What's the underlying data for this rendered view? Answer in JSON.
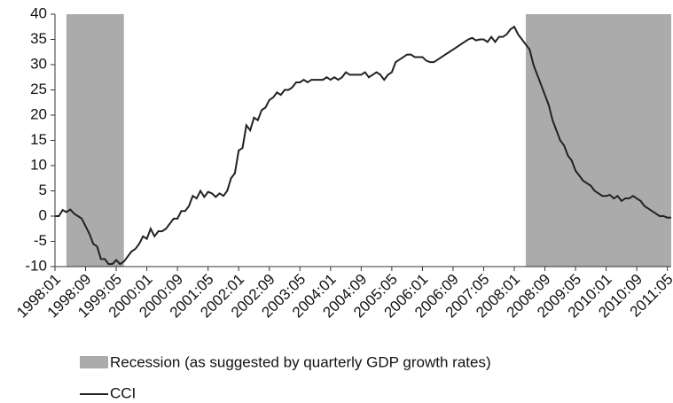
{
  "chart_data": {
    "type": "line",
    "categories": [
      "1998:01",
      null,
      null,
      null,
      null,
      null,
      null,
      null,
      "1998:09",
      null,
      null,
      null,
      null,
      null,
      null,
      null,
      "1999:05",
      null,
      null,
      null,
      null,
      null,
      null,
      null,
      "2000:01",
      null,
      null,
      null,
      null,
      null,
      null,
      null,
      "2000:09",
      null,
      null,
      null,
      null,
      null,
      null,
      null,
      "2001:05",
      null,
      null,
      null,
      null,
      null,
      null,
      null,
      "2002:01",
      null,
      null,
      null,
      null,
      null,
      null,
      null,
      "2002:09",
      null,
      null,
      null,
      null,
      null,
      null,
      null,
      "2003:05",
      null,
      null,
      null,
      null,
      null,
      null,
      null,
      "2004:01",
      null,
      null,
      null,
      null,
      null,
      null,
      null,
      "2004:09",
      null,
      null,
      null,
      null,
      null,
      null,
      null,
      "2005:05",
      null,
      null,
      null,
      null,
      null,
      null,
      null,
      "2006:01",
      null,
      null,
      null,
      null,
      null,
      null,
      null,
      "2006:09",
      null,
      null,
      null,
      null,
      null,
      null,
      null,
      "2007:05",
      null,
      null,
      null,
      null,
      null,
      null,
      null,
      "2008:01",
      null,
      null,
      null,
      null,
      null,
      null,
      null,
      "2008:09",
      null,
      null,
      null,
      null,
      null,
      null,
      null,
      "2009:05",
      null,
      null,
      null,
      null,
      null,
      null,
      null,
      "2010:01",
      null,
      null,
      null,
      null,
      null,
      null,
      null,
      "2010:09",
      null,
      null,
      null,
      null,
      null,
      null,
      null,
      "2011:05",
      null
    ],
    "series": [
      {
        "name": "CCI",
        "color": "#222222",
        "values": [
          0,
          0,
          1.2,
          0.8,
          1.3,
          0.5,
          0,
          -0.5,
          -2,
          -3.5,
          -5.5,
          -6,
          -8.5,
          -8.5,
          -9.5,
          -9.5,
          -8.7,
          -9.5,
          -9,
          -8,
          -7,
          -6.5,
          -5.5,
          -4,
          -4.5,
          -2.5,
          -4,
          -3,
          -3,
          -2.5,
          -1.5,
          -0.5,
          -0.5,
          1,
          1,
          2,
          4,
          3.5,
          5,
          3.8,
          4.8,
          4.5,
          3.8,
          4.5,
          4,
          5,
          7.5,
          8.5,
          13,
          13.5,
          18,
          17,
          19.5,
          19,
          21,
          21.5,
          23,
          23.5,
          24.5,
          24,
          25,
          25,
          25.5,
          26.5,
          26.5,
          27,
          26.5,
          27,
          27,
          27,
          27,
          27.5,
          27,
          27.5,
          27,
          27.5,
          28.5,
          28,
          28,
          28,
          28,
          28.5,
          27.5,
          28,
          28.5,
          28,
          27,
          28,
          28.5,
          30.5,
          31,
          31.5,
          32,
          32,
          31.5,
          31.5,
          31.5,
          30.8,
          30.5,
          30.5,
          31,
          31.5,
          32,
          32.5,
          33,
          33.5,
          34,
          34.5,
          35,
          35.3,
          34.8,
          35,
          35,
          34.5,
          35.5,
          34.5,
          35.5,
          35.5,
          36,
          37,
          37.5,
          36,
          35,
          34,
          33,
          30,
          28,
          26,
          24,
          22,
          19,
          17,
          15,
          14,
          12,
          11,
          9,
          8,
          7,
          6.5,
          6,
          5,
          4.5,
          4,
          4,
          4.2,
          3.5,
          4,
          3,
          3.5,
          3.5,
          4,
          3.5,
          3,
          2,
          1.5,
          1,
          0.5,
          0,
          0,
          -0.3,
          -0.3
        ]
      }
    ],
    "recessions": {
      "name": "Recession (as suggested by quarterly GDP growth rates)",
      "color": "#ababab",
      "spans": [
        [
          3,
          18
        ],
        [
          123,
          161
        ]
      ]
    },
    "ylim": [
      -10,
      40
    ],
    "yticks": [
      -10,
      -5,
      0,
      5,
      10,
      15,
      20,
      25,
      30,
      35,
      40
    ]
  }
}
